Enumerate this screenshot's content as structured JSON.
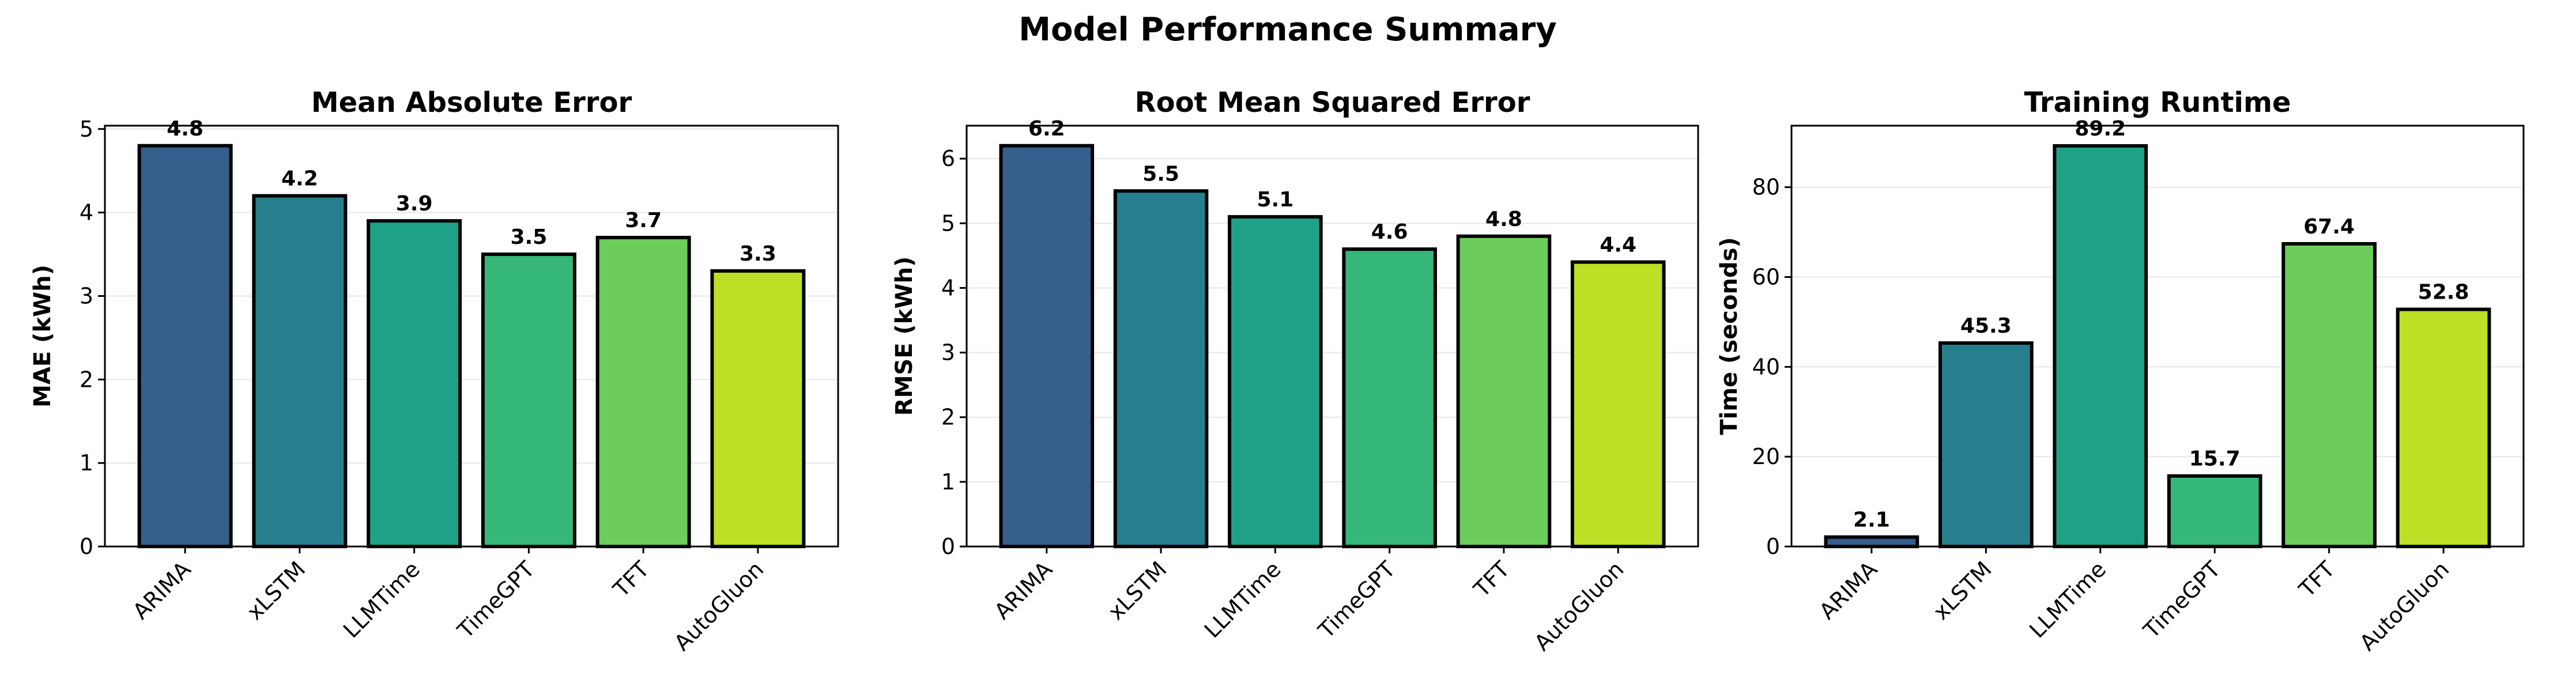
{
  "figure": {
    "title": "Model Performance Summary"
  },
  "chart_data": [
    {
      "type": "bar",
      "title": "Mean Absolute Error",
      "xlabel": "",
      "ylabel": "MAE (kWh)",
      "categories": [
        "ARIMA",
        "xLSTM",
        "LLMTime",
        "TimeGPT",
        "TFT",
        "AutoGluon"
      ],
      "values": [
        4.8,
        4.2,
        3.9,
        3.5,
        3.7,
        3.3
      ],
      "value_labels": [
        "4.8",
        "4.2",
        "3.9",
        "3.5",
        "3.7",
        "3.3"
      ],
      "ylim": [
        0,
        5.04
      ],
      "yticks": [
        0,
        1,
        2,
        3,
        4,
        5
      ],
      "ytick_labels": [
        "0",
        "1",
        "2",
        "3",
        "4",
        "5"
      ],
      "grid": "y"
    },
    {
      "type": "bar",
      "title": "Root Mean Squared Error",
      "xlabel": "",
      "ylabel": "RMSE (kWh)",
      "categories": [
        "ARIMA",
        "xLSTM",
        "LLMTime",
        "TimeGPT",
        "TFT",
        "AutoGluon"
      ],
      "values": [
        6.2,
        5.5,
        5.1,
        4.6,
        4.8,
        4.4
      ],
      "value_labels": [
        "6.2",
        "5.5",
        "5.1",
        "4.6",
        "4.8",
        "4.4"
      ],
      "ylim": [
        0,
        6.51
      ],
      "yticks": [
        0,
        1,
        2,
        3,
        4,
        5,
        6
      ],
      "ytick_labels": [
        "0",
        "1",
        "2",
        "3",
        "4",
        "5",
        "6"
      ],
      "grid": "y"
    },
    {
      "type": "bar",
      "title": "Training Runtime",
      "xlabel": "",
      "ylabel": "Time (seconds)",
      "categories": [
        "ARIMA",
        "xLSTM",
        "LLMTime",
        "TimeGPT",
        "TFT",
        "AutoGluon"
      ],
      "values": [
        2.1,
        45.3,
        89.2,
        15.7,
        67.4,
        52.8
      ],
      "value_labels": [
        "2.1",
        "45.3",
        "89.2",
        "15.7",
        "67.4",
        "52.8"
      ],
      "ylim": [
        0,
        93.7
      ],
      "yticks": [
        0,
        20,
        40,
        60,
        80
      ],
      "ytick_labels": [
        "0",
        "20",
        "40",
        "60",
        "80"
      ],
      "grid": "y"
    }
  ],
  "colors": {
    "bars": [
      "#355f8d",
      "#277f8e",
      "#1fa187",
      "#35b779",
      "#6ccd5a",
      "#bddf26"
    ],
    "bar_edge": "#000000",
    "grid": "#e6e6e6",
    "axes": "#000000"
  }
}
